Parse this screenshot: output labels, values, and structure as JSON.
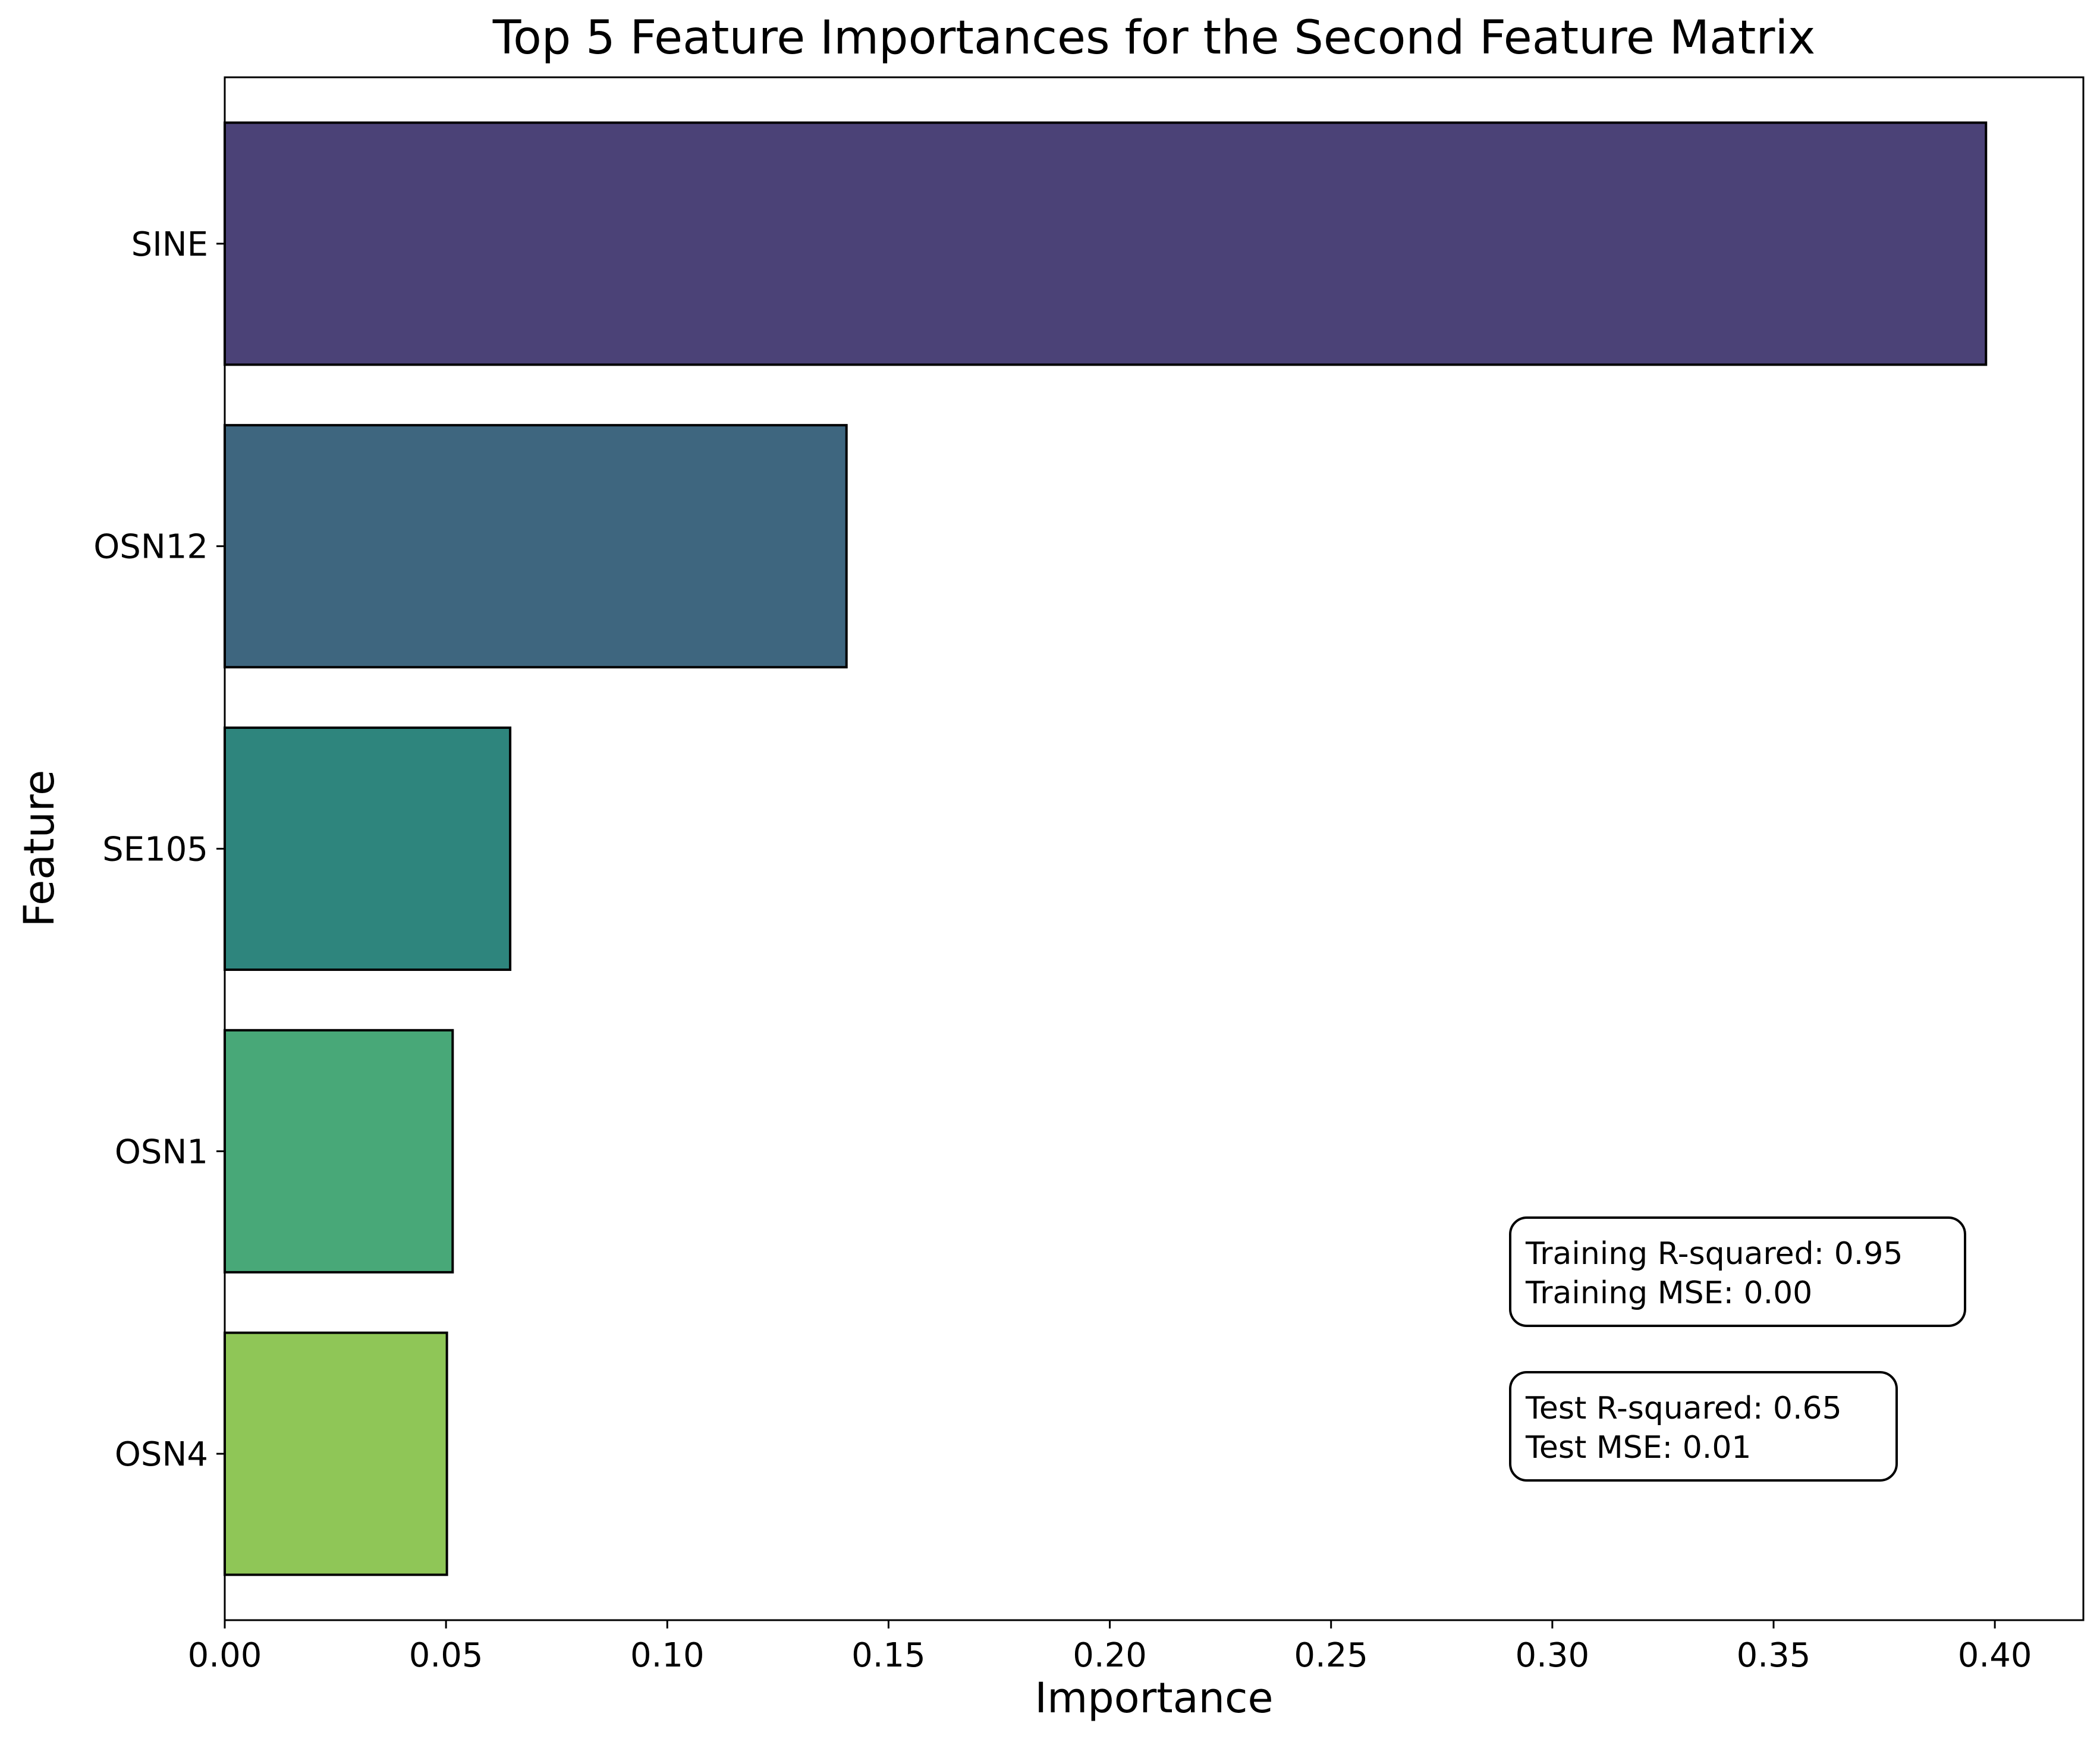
{
  "chart_data": {
    "type": "bar",
    "orientation": "horizontal",
    "title": "Top 5 Feature Importances for the Second Feature Matrix",
    "xlabel": "Importance",
    "ylabel": "Feature",
    "categories": [
      "SINE",
      "OSN12",
      "SE105",
      "OSN1",
      "OSN4"
    ],
    "values": [
      0.398,
      0.1405,
      0.0645,
      0.0515,
      0.0502
    ],
    "colors": [
      "#4b4277",
      "#3e667f",
      "#2e857d",
      "#48a878",
      "#8fc657"
    ],
    "xlim": [
      0,
      0.42
    ],
    "xticks": [
      0.0,
      0.05,
      0.1,
      0.15,
      0.2,
      0.25,
      0.3,
      0.35,
      0.4
    ],
    "xtick_labels": [
      "0.00",
      "0.05",
      "0.10",
      "0.15",
      "0.20",
      "0.25",
      "0.30",
      "0.35",
      "0.40"
    ],
    "grid": false,
    "annotations": [
      {
        "name": "training-stats-box",
        "lines": [
          "Training R-squared: 0.95",
          "Training MSE: 0.00"
        ]
      },
      {
        "name": "test-stats-box",
        "lines": [
          "Test R-squared: 0.65",
          "Test MSE: 0.01"
        ]
      }
    ]
  }
}
